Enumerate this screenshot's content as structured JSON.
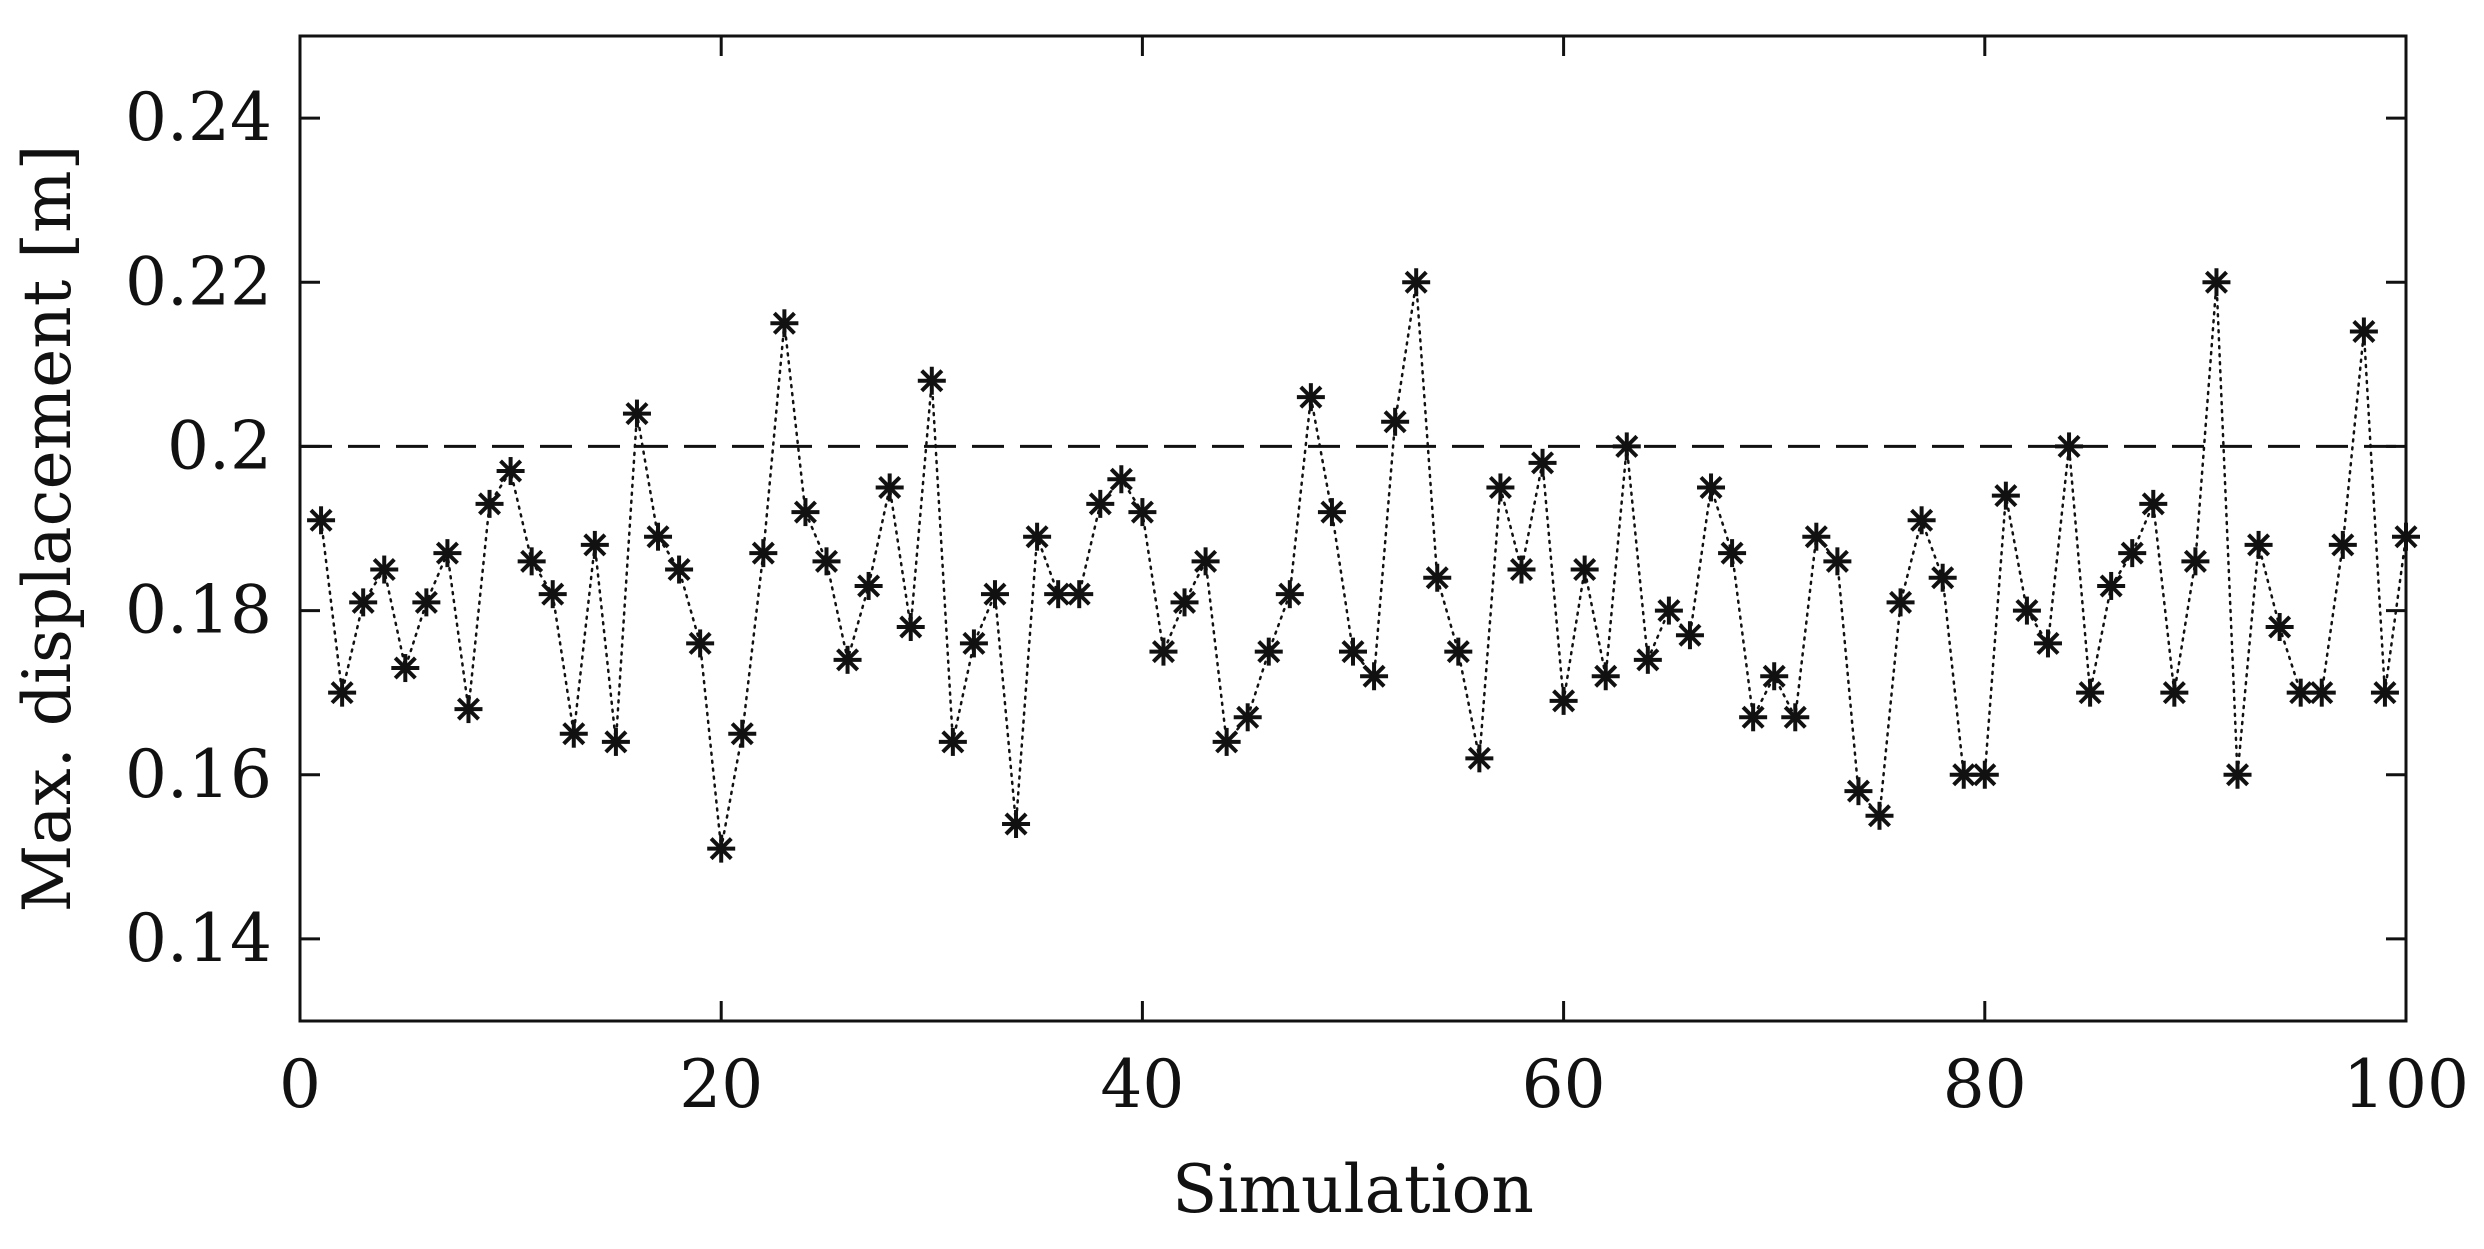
{
  "chart_data": {
    "type": "scatter",
    "title": "",
    "xlabel": "Simulation",
    "ylabel": "Max. displacement [m]",
    "xlim": [
      0,
      100
    ],
    "ylim": [
      0.13,
      0.25
    ],
    "xticks": [
      0,
      20,
      40,
      60,
      80,
      100
    ],
    "xtick_labels": [
      "0",
      "20",
      "40",
      "60",
      "80",
      "100"
    ],
    "yticks": [
      0.14,
      0.16,
      0.18,
      0.2,
      0.22,
      0.24
    ],
    "ytick_labels": [
      "0.14",
      "0.16",
      "0.18",
      "0.2",
      "0.22",
      "0.24"
    ],
    "grid": false,
    "legend": "none",
    "marker": "asterisk",
    "connector": "dotted",
    "color": "#111111",
    "threshold": {
      "y": 0.2,
      "style": "dashed"
    },
    "x": [
      1,
      2,
      3,
      4,
      5,
      6,
      7,
      8,
      9,
      10,
      11,
      12,
      13,
      14,
      15,
      16,
      17,
      18,
      19,
      20,
      21,
      22,
      23,
      24,
      25,
      26,
      27,
      28,
      29,
      30,
      31,
      32,
      33,
      34,
      35,
      36,
      37,
      38,
      39,
      40,
      41,
      42,
      43,
      44,
      45,
      46,
      47,
      48,
      49,
      50,
      51,
      52,
      53,
      54,
      55,
      56,
      57,
      58,
      59,
      60,
      61,
      62,
      63,
      64,
      65,
      66,
      67,
      68,
      69,
      70,
      71,
      72,
      73,
      74,
      75,
      76,
      77,
      78,
      79,
      80,
      81,
      82,
      83,
      84,
      85,
      86,
      87,
      88,
      89,
      90,
      91,
      92,
      93,
      94,
      95,
      96,
      97,
      98,
      99,
      100
    ],
    "y": [
      0.191,
      0.17,
      0.181,
      0.185,
      0.173,
      0.181,
      0.187,
      0.168,
      0.193,
      0.197,
      0.186,
      0.182,
      0.165,
      0.188,
      0.164,
      0.204,
      0.189,
      0.185,
      0.176,
      0.151,
      0.165,
      0.187,
      0.215,
      0.192,
      0.186,
      0.174,
      0.183,
      0.195,
      0.178,
      0.208,
      0.164,
      0.176,
      0.182,
      0.154,
      0.189,
      0.182,
      0.182,
      0.193,
      0.196,
      0.192,
      0.175,
      0.181,
      0.186,
      0.164,
      0.167,
      0.175,
      0.182,
      0.206,
      0.192,
      0.175,
      0.172,
      0.203,
      0.22,
      0.184,
      0.175,
      0.162,
      0.195,
      0.185,
      0.198,
      0.169,
      0.185,
      0.172,
      0.2,
      0.174,
      0.18,
      0.177,
      0.195,
      0.187,
      0.167,
      0.172,
      0.167,
      0.189,
      0.186,
      0.158,
      0.155,
      0.181,
      0.191,
      0.184,
      0.16,
      0.16,
      0.194,
      0.18,
      0.176,
      0.2,
      0.17,
      0.183,
      0.187,
      0.193,
      0.17,
      0.186,
      0.22,
      0.16,
      0.188,
      0.178,
      0.17,
      0.17,
      0.188,
      0.214,
      0.17,
      0.189
    ]
  }
}
